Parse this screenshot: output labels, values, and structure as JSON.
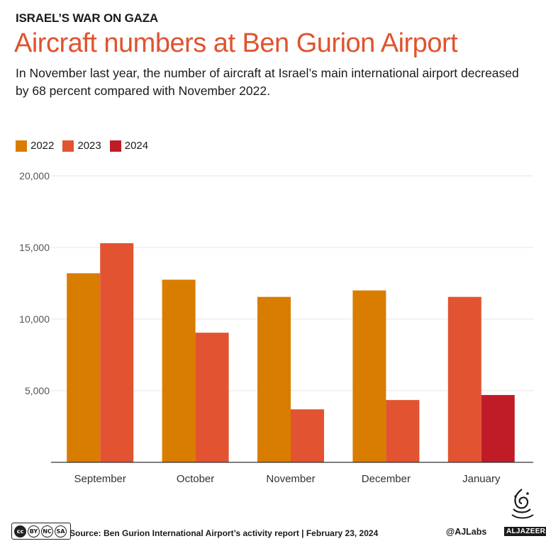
{
  "header": {
    "kicker": "ISRAEL’S WAR ON GAZA",
    "title": "Aircraft numbers at Ben Gurion Airport",
    "subtitle": "In November last year, the number of aircraft at Israel’s main international airport decreased by 68 percent compared with November 2022."
  },
  "colors": {
    "title": "#e0532e",
    "s2022": "#d97d00",
    "s2023": "#e25331",
    "s2024": "#c01c28",
    "grid": "#e6e6e6",
    "axis": "#333333"
  },
  "chart_data": {
    "type": "bar",
    "categories": [
      "September",
      "October",
      "November",
      "December",
      "January"
    ],
    "series": [
      {
        "name": "2022",
        "values": [
          13200,
          12750,
          11550,
          12000,
          null
        ]
      },
      {
        "name": "2023",
        "values": [
          15300,
          9050,
          3700,
          4350,
          11550
        ]
      },
      {
        "name": "2024",
        "values": [
          null,
          null,
          null,
          null,
          4700
        ]
      }
    ],
    "yticks": [
      5000,
      10000,
      15000,
      20000
    ],
    "ytick_labels": [
      "5,000",
      "10,000",
      "15,000",
      "20,000"
    ],
    "ylim": [
      0,
      20000
    ],
    "legend": [
      "2022",
      "2023",
      "2024"
    ],
    "legend_position": "top-left",
    "grid": true
  },
  "footer": {
    "cc_labels": [
      "cc",
      "BY",
      "NC",
      "SA"
    ],
    "source": "Source: Ben Gurion International Airport’s activity report  |  February 23, 2024",
    "handle": "@AJLabs",
    "brand": "ALJAZEERA"
  }
}
